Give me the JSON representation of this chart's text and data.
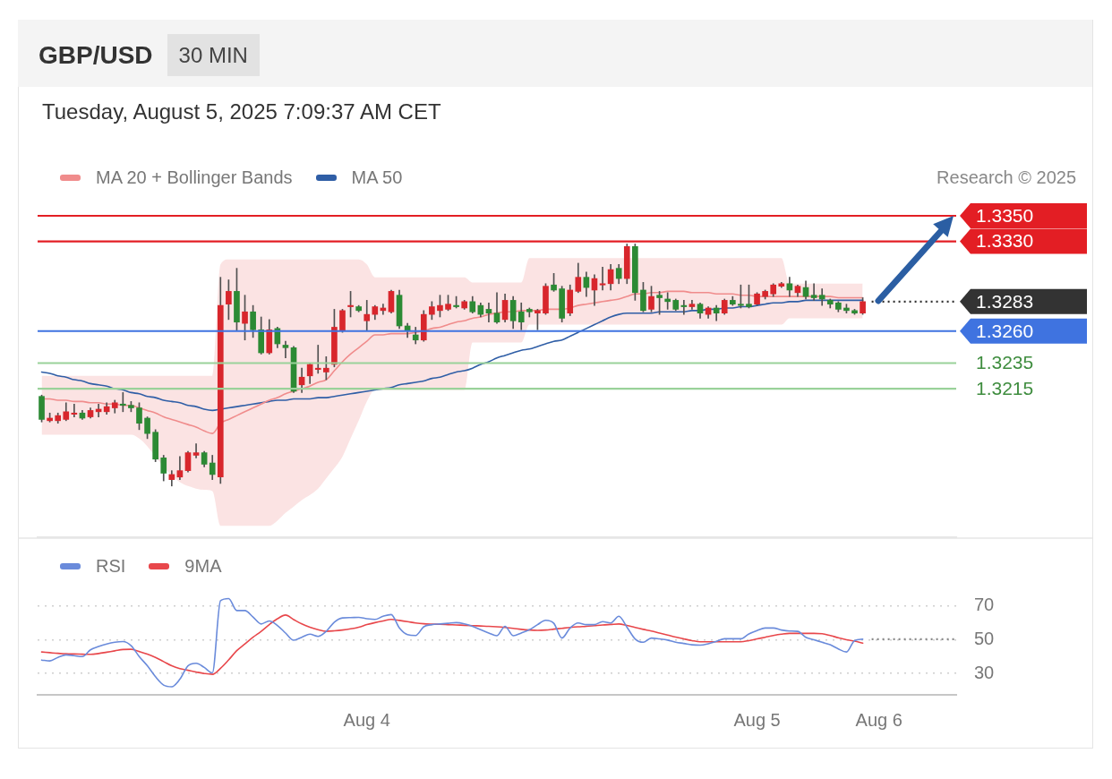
{
  "chart_data": [
    {
      "type": "candlestick",
      "title": "GBP/USD",
      "subtitle": "Tuesday, August 5, 2025 7:09:37 AM CET",
      "annotations": [
        "30 MIN",
        "Research © 2025"
      ],
      "categories": [
        null,
        null,
        null,
        null,
        null,
        null,
        null,
        null,
        null,
        null,
        null,
        null,
        null,
        null,
        null,
        null,
        null,
        null,
        null,
        null,
        null,
        null,
        null,
        null,
        null,
        null,
        null,
        null,
        null,
        null,
        null,
        null,
        null,
        null,
        null,
        null,
        null,
        null,
        null,
        null,
        null,
        null,
        null,
        null,
        null,
        null,
        null,
        null,
        null,
        null,
        null,
        null,
        null,
        null,
        null,
        null,
        null,
        null,
        null,
        null,
        null,
        null,
        null,
        null,
        null,
        null,
        null,
        null,
        null,
        null,
        null,
        null,
        null,
        null,
        null,
        null,
        null,
        null,
        null,
        null,
        null,
        null,
        null,
        null,
        null,
        null,
        null,
        null,
        null,
        null,
        null,
        null,
        null,
        null,
        null,
        null,
        null,
        null,
        null,
        null,
        null,
        null,
        null,
        null,
        null,
        null,
        null,
        null,
        null,
        null,
        null,
        null,
        null
      ],
      "ohlc": [
        [
          1.3209,
          1.321,
          1.3189,
          1.3191
        ],
        [
          1.319,
          1.3196,
          1.3189,
          1.3192
        ],
        [
          1.319,
          1.3196,
          1.3188,
          1.3194
        ],
        [
          1.3191,
          1.3204,
          1.319,
          1.3197
        ],
        [
          1.3195,
          1.3203,
          1.3193,
          1.3196
        ],
        [
          1.3196,
          1.3198,
          1.3191,
          1.3192
        ],
        [
          1.3193,
          1.32,
          1.3192,
          1.3198
        ],
        [
          1.3197,
          1.3203,
          1.3193,
          1.3199
        ],
        [
          1.3197,
          1.3204,
          1.3195,
          1.3201
        ],
        [
          1.32,
          1.3206,
          1.3196,
          1.3204
        ],
        [
          1.3203,
          1.3212,
          1.3197,
          1.3202
        ],
        [
          1.3202,
          1.3205,
          1.3197,
          1.32
        ],
        [
          1.32,
          1.3204,
          1.3183,
          1.3188
        ],
        [
          1.3192,
          1.3193,
          1.3176,
          1.318
        ],
        [
          1.3181,
          1.3183,
          1.3158,
          1.316
        ],
        [
          1.3161,
          1.3163,
          1.3143,
          1.3149
        ],
        [
          1.3144,
          1.3151,
          1.3139,
          1.3148
        ],
        [
          1.3146,
          1.3162,
          1.3144,
          1.3151
        ],
        [
          1.3151,
          1.3166,
          1.315,
          1.3165
        ],
        [
          1.3163,
          1.3172,
          1.3161,
          1.3165
        ],
        [
          1.3165,
          1.3166,
          1.3154,
          1.3156
        ],
        [
          1.3157,
          1.3163,
          1.3144,
          1.3148
        ],
        [
          1.3146,
          1.3302,
          1.3141,
          1.328
        ],
        [
          1.3281,
          1.33,
          1.3269,
          1.3291
        ],
        [
          1.3291,
          1.3309,
          1.326,
          1.3267
        ],
        [
          1.3266,
          1.3288,
          1.3253,
          1.3275
        ],
        [
          1.3275,
          1.328,
          1.3255,
          1.3261
        ],
        [
          1.3261,
          1.3271,
          1.3242,
          1.3243
        ],
        [
          1.3243,
          1.3269,
          1.3242,
          1.3261
        ],
        [
          1.3262,
          1.3263,
          1.3247,
          1.325
        ],
        [
          1.3249,
          1.3252,
          1.3239,
          1.3247
        ],
        [
          1.3247,
          1.3248,
          1.3212,
          1.3213
        ],
        [
          1.3218,
          1.3231,
          1.3212,
          1.3224
        ],
        [
          1.3225,
          1.3235,
          1.3219,
          1.3234
        ],
        [
          1.323,
          1.3249,
          1.3227,
          1.3231
        ],
        [
          1.3228,
          1.324,
          1.3222,
          1.3231
        ],
        [
          1.3234,
          1.3277,
          1.3232,
          1.3263
        ],
        [
          1.326,
          1.3277,
          1.3259,
          1.3276
        ],
        [
          1.3279,
          1.3291,
          1.3271,
          1.328
        ],
        [
          1.3279,
          1.328,
          1.3275,
          1.3276
        ],
        [
          1.3268,
          1.3284,
          1.326,
          1.3273
        ],
        [
          1.3273,
          1.328,
          1.3269,
          1.3279
        ],
        [
          1.3276,
          1.3281,
          1.3273,
          1.3278
        ],
        [
          1.3275,
          1.3292,
          1.3274,
          1.3291
        ],
        [
          1.3288,
          1.3292,
          1.3262,
          1.3264
        ],
        [
          1.3264,
          1.3266,
          1.3255,
          1.326
        ],
        [
          1.3257,
          1.3263,
          1.325,
          1.3253
        ],
        [
          1.3253,
          1.3276,
          1.3252,
          1.3273
        ],
        [
          1.3273,
          1.3283,
          1.3269,
          1.3279
        ],
        [
          1.3276,
          1.3288,
          1.3271,
          1.328
        ],
        [
          1.3277,
          1.3288,
          1.3276,
          1.3281
        ],
        [
          1.328,
          1.3287,
          1.3278,
          1.3279
        ],
        [
          1.3278,
          1.3284,
          1.3277,
          1.3283
        ],
        [
          1.3283,
          1.3287,
          1.3274,
          1.3275
        ],
        [
          1.328,
          1.3282,
          1.3271,
          1.3273
        ],
        [
          1.3277,
          1.3282,
          1.3267,
          1.3274
        ],
        [
          1.3274,
          1.329,
          1.3266,
          1.3267
        ],
        [
          1.3269,
          1.3289,
          1.3267,
          1.3284
        ],
        [
          1.3284,
          1.3287,
          1.3262,
          1.3268
        ],
        [
          1.3275,
          1.3282,
          1.3261,
          1.3267
        ],
        [
          1.3277,
          1.3278,
          1.3271,
          1.3275
        ],
        [
          1.3274,
          1.3277,
          1.3261,
          1.3276
        ],
        [
          1.3274,
          1.3297,
          1.3273,
          1.3295
        ],
        [
          1.3296,
          1.3305,
          1.3291,
          1.3292
        ],
        [
          1.3293,
          1.3295,
          1.3267,
          1.327
        ],
        [
          1.3274,
          1.3296,
          1.3272,
          1.3292
        ],
        [
          1.3291,
          1.3313,
          1.329,
          1.3302
        ],
        [
          1.3302,
          1.3306,
          1.3287,
          1.3294
        ],
        [
          1.3292,
          1.3304,
          1.328,
          1.3301
        ],
        [
          1.3296,
          1.331,
          1.3292,
          1.3297
        ],
        [
          1.3297,
          1.3312,
          1.3292,
          1.3308
        ],
        [
          1.3309,
          1.3312,
          1.3297,
          1.3301
        ],
        [
          1.3301,
          1.3328,
          1.3297,
          1.3326
        ],
        [
          1.3326,
          1.3328,
          1.3284,
          1.329
        ],
        [
          1.3292,
          1.3298,
          1.3275,
          1.3276
        ],
        [
          1.3277,
          1.3295,
          1.3275,
          1.3287
        ],
        [
          1.3288,
          1.3291,
          1.3273,
          1.3286
        ],
        [
          1.3285,
          1.329,
          1.3277,
          1.3283
        ],
        [
          1.3284,
          1.3285,
          1.3276,
          1.3277
        ],
        [
          1.328,
          1.3284,
          1.3273,
          1.3279
        ],
        [
          1.3279,
          1.3284,
          1.3277,
          1.3281
        ],
        [
          1.3281,
          1.3282,
          1.327,
          1.3274
        ],
        [
          1.3273,
          1.3279,
          1.327,
          1.3278
        ],
        [
          1.3278,
          1.328,
          1.3268,
          1.3274
        ],
        [
          1.3274,
          1.3285,
          1.3273,
          1.3284
        ],
        [
          1.3284,
          1.3287,
          1.328,
          1.3281
        ],
        [
          1.3281,
          1.3296,
          1.3278,
          1.328
        ],
        [
          1.3281,
          1.3296,
          1.3278,
          1.3279
        ],
        [
          1.3281,
          1.329,
          1.328,
          1.3289
        ],
        [
          1.3287,
          1.3292,
          1.3285,
          1.3291
        ],
        [
          1.3289,
          1.3297,
          1.3287,
          1.3296
        ],
        [
          1.3295,
          1.3298,
          1.3294,
          1.3297
        ],
        [
          1.3297,
          1.3302,
          1.3287,
          1.3292
        ],
        [
          1.329,
          1.3296,
          1.3287,
          1.3295
        ],
        [
          1.3294,
          1.3299,
          1.3285,
          1.3287
        ],
        [
          1.3288,
          1.3297,
          1.3284,
          1.3286
        ],
        [
          1.3288,
          1.3293,
          1.328,
          1.3285
        ],
        [
          1.3284,
          1.3285,
          1.3278,
          1.3281
        ],
        [
          1.3282,
          1.3283,
          1.3275,
          1.3277
        ],
        [
          1.3278,
          1.3281,
          1.3274,
          1.3276
        ],
        [
          1.3276,
          1.3277,
          1.3273,
          1.3274
        ],
        [
          1.3274,
          1.3286,
          1.3273,
          1.3283
        ],
        null,
        null,
        null,
        null,
        null,
        null,
        null,
        null,
        null,
        null,
        null
      ],
      "series": [
        {
          "name": "MA 20 + Bollinger Bands",
          "type": "line",
          "color": "#f08c8c",
          "values": [
            1.3207,
            1.3207,
            1.3206,
            1.3206,
            1.3205,
            1.3205,
            1.3204,
            1.3204,
            1.3203,
            1.3203,
            1.3202,
            1.3202,
            1.32,
            1.3198,
            1.3196,
            1.3193,
            1.3191,
            1.3189,
            1.3187,
            1.3185,
            1.3182,
            1.318,
            1.3188,
            1.3191,
            1.3194,
            1.3197,
            1.32,
            1.3203,
            1.3206,
            1.3208,
            1.3211,
            1.3213,
            1.3215,
            1.3217,
            1.322,
            1.3222,
            1.3229,
            1.3236,
            1.3242,
            1.3247,
            1.3252,
            1.3257,
            1.3257,
            1.3258,
            1.3258,
            1.3258,
            1.3259,
            1.326,
            1.3262,
            1.3263,
            1.3265,
            1.3267,
            1.3268,
            1.327,
            1.3271,
            1.3273,
            1.3274,
            1.3275,
            1.3275,
            1.3276,
            1.3276,
            1.3276,
            1.3277,
            1.3277,
            1.3277,
            1.3278,
            1.328,
            1.3281,
            1.3282,
            1.3283,
            1.3284,
            1.3285,
            1.3287,
            1.3289,
            1.3289,
            1.329,
            1.329,
            1.3291,
            1.3291,
            1.3291,
            1.329,
            1.329,
            1.329,
            1.3289,
            1.3289,
            1.3289,
            1.3288,
            1.3288,
            1.3287,
            1.3287,
            1.3287,
            1.3287,
            1.3287,
            1.3287,
            1.3287,
            1.3287,
            1.3287,
            1.3287,
            1.3286,
            1.3286,
            1.3286,
            1.3286,
            null,
            null,
            null,
            null,
            null,
            null,
            null,
            null,
            null,
            null,
            null
          ],
          "upper": [
            1.3225,
            1.3225,
            1.3225,
            1.3225,
            1.3225,
            1.3225,
            1.3225,
            1.3225,
            1.3225,
            1.3225,
            1.3225,
            1.3225,
            1.3225,
            1.3225,
            1.3225,
            1.3225,
            1.3225,
            1.3225,
            1.3225,
            1.3225,
            1.3225,
            1.3225,
            1.3312,
            1.3316,
            1.3316,
            1.3316,
            1.3316,
            1.3316,
            1.3316,
            1.3316,
            1.3316,
            1.3316,
            1.3316,
            1.3316,
            1.3316,
            1.3316,
            1.3316,
            1.3316,
            1.3316,
            1.3316,
            1.3312,
            1.3302,
            1.3302,
            1.3302,
            1.3302,
            1.3302,
            1.3302,
            1.3302,
            1.3302,
            1.3302,
            1.3302,
            1.3302,
            1.3302,
            1.3298,
            1.3298,
            1.3298,
            1.3298,
            1.3298,
            1.3298,
            1.3298,
            1.3317,
            1.3317,
            1.3317,
            1.3317,
            1.3317,
            1.3317,
            1.3317,
            1.3317,
            1.3317,
            1.3317,
            1.3317,
            1.3317,
            1.3317,
            1.3317,
            1.3317,
            1.3317,
            1.3317,
            1.3317,
            1.3317,
            1.3317,
            1.3317,
            1.3317,
            1.3317,
            1.3317,
            1.3317,
            1.3317,
            1.3317,
            1.3317,
            1.3317,
            1.3317,
            1.3317,
            1.3317,
            1.3297,
            1.3297,
            1.3297,
            1.3297,
            1.3297,
            1.3297,
            1.3297,
            1.3297,
            1.3297,
            1.3297,
            null,
            null,
            null,
            null,
            null,
            null,
            null,
            null,
            null,
            null,
            null
          ],
          "lower": [
            1.3179,
            1.3179,
            1.3179,
            1.3179,
            1.3179,
            1.3179,
            1.3179,
            1.3179,
            1.3179,
            1.3179,
            1.3179,
            1.3179,
            1.3176,
            1.317,
            1.3162,
            1.3154,
            1.3147,
            1.3142,
            1.3139,
            1.3137,
            1.3136,
            1.3135,
            1.3108,
            1.3108,
            1.3108,
            1.3108,
            1.3108,
            1.3108,
            1.3108,
            1.3112,
            1.3118,
            1.3123,
            1.3128,
            1.3132,
            1.3137,
            1.3145,
            1.3153,
            1.3162,
            1.3176,
            1.319,
            1.3205,
            1.3214,
            1.3214,
            1.3214,
            1.3214,
            1.3214,
            1.3214,
            1.3214,
            1.3214,
            1.3214,
            1.3214,
            1.3214,
            1.3214,
            1.3251,
            1.3251,
            1.3251,
            1.3251,
            1.3251,
            1.3251,
            1.3251,
            1.3265,
            1.3265,
            1.3265,
            1.3265,
            1.3265,
            1.3265,
            1.3265,
            1.3265,
            1.3265,
            1.3265,
            1.3265,
            1.3265,
            1.3265,
            1.3265,
            1.3265,
            1.3265,
            1.3265,
            1.3265,
            1.3265,
            1.3265,
            1.3265,
            1.3265,
            1.3265,
            1.3265,
            1.3265,
            1.3265,
            1.3265,
            1.3265,
            1.3265,
            1.3265,
            1.3265,
            1.3265,
            1.327,
            1.327,
            1.327,
            1.327,
            1.327,
            1.327,
            1.327,
            1.327,
            1.327,
            1.327,
            null,
            null,
            null,
            null,
            null,
            null,
            null,
            null,
            null,
            null,
            null
          ]
        },
        {
          "name": "MA 50",
          "type": "line",
          "color": "#2f5ea6",
          "values": [
            1.3228,
            1.3227,
            1.3225,
            1.3224,
            1.3222,
            1.3221,
            1.3219,
            1.3218,
            1.3217,
            1.3215,
            1.3214,
            1.3212,
            1.3211,
            1.3209,
            1.3208,
            1.3206,
            1.3205,
            1.3204,
            1.3202,
            1.3201,
            1.3199,
            1.3198,
            1.3199,
            1.32,
            1.3201,
            1.3202,
            1.3203,
            1.3204,
            1.3205,
            1.3206,
            1.3206,
            1.3207,
            1.3207,
            1.3207,
            1.3208,
            1.3208,
            1.3209,
            1.321,
            1.3211,
            1.3212,
            1.3213,
            1.3214,
            1.3215,
            1.3216,
            1.3218,
            1.3219,
            1.322,
            1.3221,
            1.3223,
            1.3224,
            1.3226,
            1.3228,
            1.3229,
            1.3231,
            1.3234,
            1.3236,
            1.3239,
            1.3241,
            1.3243,
            1.3245,
            1.3246,
            1.3248,
            1.325,
            1.3252,
            1.3253,
            1.3256,
            1.3259,
            1.3262,
            1.3265,
            1.3268,
            1.3271,
            1.3273,
            1.3274,
            1.3274,
            1.3274,
            1.3274,
            1.3275,
            1.3275,
            1.3275,
            1.3275,
            1.3276,
            1.3276,
            1.3277,
            1.3277,
            1.3278,
            1.3278,
            1.3279,
            1.3279,
            1.328,
            1.3281,
            1.3282,
            1.3282,
            1.3283,
            1.3283,
            1.3284,
            1.3284,
            1.3284,
            1.3284,
            1.3284,
            1.3284,
            1.3284,
            1.3284,
            null,
            null,
            null,
            null,
            null,
            null,
            null,
            null,
            null,
            null,
            null
          ]
        }
      ],
      "ylim": [
        1.3099,
        1.335
      ],
      "legend": "top left",
      "ref_lines": [
        {
          "axis": "y",
          "value": 1.335,
          "label": "1.3350",
          "color": "#e31e24"
        },
        {
          "axis": "y",
          "value": 1.333,
          "label": "1.3330",
          "color": "#e31e24"
        },
        {
          "axis": "y",
          "value": 1.3283,
          "label": "1.3283",
          "color": "#333333",
          "line_style": "dotted"
        },
        {
          "axis": "y",
          "value": 1.326,
          "label": "1.3260",
          "color": "#3f73e0"
        },
        {
          "axis": "y",
          "value": 1.3235,
          "label": "1.3235",
          "color": "#9ad29a"
        },
        {
          "axis": "y",
          "value": 1.3215,
          "label": "1.3215",
          "color": "#9ad29a"
        }
      ]
    },
    {
      "type": "line",
      "categories": [
        null,
        null,
        null,
        null,
        null,
        null,
        null,
        null,
        null,
        null,
        null,
        null,
        null,
        null,
        null,
        null,
        null,
        null,
        null,
        null,
        null,
        null,
        null,
        null,
        null,
        null,
        null,
        null,
        null,
        null,
        null,
        null,
        null,
        null,
        null,
        null,
        null,
        null,
        null,
        null,
        "Aug 4",
        null,
        null,
        null,
        null,
        null,
        null,
        null,
        null,
        null,
        null,
        null,
        null,
        null,
        null,
        null,
        null,
        null,
        null,
        null,
        null,
        null,
        null,
        null,
        null,
        null,
        null,
        null,
        null,
        null,
        null,
        null,
        null,
        null,
        null,
        null,
        null,
        null,
        null,
        null,
        null,
        null,
        null,
        null,
        null,
        null,
        null,
        null,
        "Aug 5",
        null,
        null,
        null,
        null,
        null,
        null,
        null,
        null,
        null,
        null,
        null,
        null,
        null,
        null,
        "Aug 6",
        null,
        null,
        null,
        null,
        null,
        null,
        null,
        null,
        null
      ],
      "series": [
        {
          "name": "RSI",
          "color": "#6a8bdb",
          "values": [
            37.9,
            37.4,
            39.5,
            41,
            40.5,
            40,
            44,
            46,
            47.5,
            48.5,
            48.9,
            46.5,
            40,
            34.5,
            28,
            23,
            22,
            26.5,
            34.5,
            36,
            33.5,
            30.3,
            73.2,
            74.5,
            67.4,
            67.4,
            63.5,
            59.4,
            61.2,
            58.5,
            54,
            49.7,
            51.5,
            53.3,
            52,
            55,
            60.5,
            63,
            63.2,
            63.3,
            62.5,
            62.1,
            64,
            65,
            57,
            53,
            52.5,
            57.7,
            59,
            59.4,
            59.8,
            60.2,
            59.5,
            58,
            56,
            54,
            52.4,
            58,
            52.4,
            54,
            56,
            59,
            61.6,
            59.8,
            51,
            57,
            60,
            59,
            59,
            60.8,
            60,
            64,
            57.5,
            50.5,
            48.5,
            51,
            50.5,
            49.8,
            48.5,
            47.8,
            47,
            46.8,
            47.6,
            49,
            50.6,
            50.6,
            50.6,
            53.5,
            55.5,
            57,
            57,
            55.8,
            55.2,
            55,
            51.5,
            50,
            48.5,
            47,
            44.5,
            42.7,
            49.5,
            50.3,
            null,
            null,
            null,
            null,
            null,
            null,
            null,
            null,
            null,
            null,
            null
          ]
        },
        {
          "name": "9MA",
          "color": "#e8474b",
          "values": [
            42.7,
            42.3,
            41.9,
            41.7,
            41.5,
            41.4,
            41.3,
            41.8,
            42.6,
            43.4,
            44.2,
            44.3,
            43,
            41.5,
            39.5,
            37,
            34.5,
            32.8,
            31.8,
            30.8,
            29.9,
            29.4,
            33,
            38,
            43.5,
            47.5,
            51.5,
            55,
            59,
            62.5,
            64.7,
            62,
            59.4,
            57.5,
            56,
            55,
            55.3,
            55.8,
            56.5,
            57.5,
            59,
            60.2,
            61.2,
            62.1,
            61.5,
            60.8,
            60,
            59.5,
            59.3,
            59.2,
            59,
            58.8,
            58.6,
            58.4,
            58.2,
            58,
            57.7,
            57.3,
            56.8,
            56.2,
            55.8,
            55.6,
            55.8,
            56.3,
            56.8,
            57.3,
            57.7,
            58,
            58.4,
            58.8,
            59.1,
            59.4,
            58.5,
            57.3,
            56.2,
            55.2,
            54,
            52.8,
            51.6,
            50.5,
            49.5,
            48.8,
            48.8,
            48.8,
            48.8,
            48.8,
            48.8,
            49.5,
            50.5,
            51.5,
            52.5,
            53.3,
            53.8,
            53.8,
            53.8,
            53.8,
            53.6,
            52.5,
            51.2,
            50,
            49.2,
            48,
            null,
            null,
            null,
            null,
            null,
            null,
            null,
            null,
            null,
            null,
            null
          ]
        }
      ],
      "ylim": [
        17.2,
        110.5
      ],
      "yticks": [
        30,
        50,
        70
      ],
      "grid": "y",
      "legend": "top left",
      "ref_lines": [
        {
          "axis": "y",
          "value": 50.3,
          "color": "#8a8a8a",
          "line_style": "dotted"
        }
      ]
    }
  ]
}
